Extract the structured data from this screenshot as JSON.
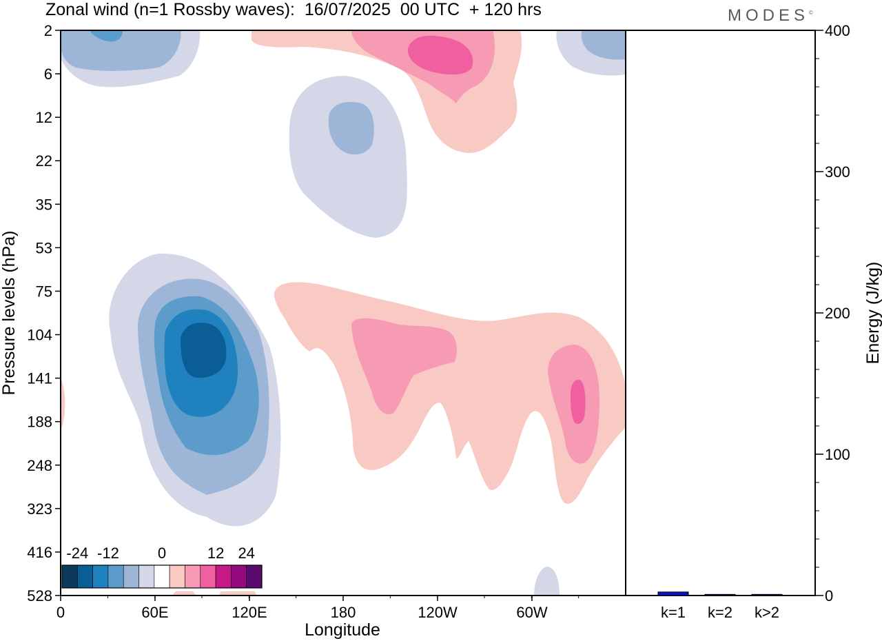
{
  "header": {
    "title": "Zonal wind (n=1 Rossby waves):  16/07/2025  00 UTC  + 120 hrs",
    "brand": "MODES",
    "brand_mark": "©"
  },
  "colors": {
    "neg": [
      "#0b3a5c",
      "#0b5d96",
      "#1f82bf",
      "#5b9ccb",
      "#9db6d8",
      "#d4d7e8"
    ],
    "zero": "#ffffff",
    "pos": [
      "#f9c9c4",
      "#f79ab3",
      "#f060a0",
      "#c8198a",
      "#920a7c",
      "#5a0a6c"
    ],
    "bar_fill": "#1010c8",
    "bar_edge": "#000000"
  },
  "chart_data": [
    {
      "type": "heatmap",
      "title": "Zonal wind (n=1 Rossby waves):  16/07/2025  00 UTC  + 120 hrs",
      "xlabel": "Longitude",
      "ylabel": "Pressure levels (hPa)",
      "x_ticks": [
        "0",
        "60E",
        "120E",
        "180",
        "120W",
        "60W"
      ],
      "y_ticks": [
        "2",
        "6",
        "12",
        "22",
        "35",
        "53",
        "75",
        "104",
        "141",
        "188",
        "248",
        "323",
        "416",
        "528"
      ],
      "colorbar": {
        "labels": [
          "-24",
          "-12",
          "0",
          "12",
          "24"
        ],
        "levels": [
          -30,
          -25,
          -20,
          -15,
          -10,
          -5,
          -1,
          1,
          5,
          10,
          15,
          20,
          25,
          30
        ]
      },
      "features": [
        {
          "sign": "negative",
          "lon": 90,
          "level_hPa": 120,
          "min": -24
        },
        {
          "sign": "negative",
          "lon": 20,
          "level_hPa": 2,
          "min": -10
        },
        {
          "sign": "negative",
          "lon": 190,
          "level_hPa": 15,
          "min": -10
        },
        {
          "sign": "negative",
          "lon": 340,
          "level_hPa": 2,
          "min": -10
        },
        {
          "sign": "positive",
          "lon": 230,
          "level_hPa": 3,
          "max": 15
        },
        {
          "sign": "positive",
          "lon": 210,
          "level_hPa": 110,
          "max": 10
        },
        {
          "sign": "positive",
          "lon": 315,
          "level_hPa": 150,
          "max": 15
        }
      ]
    },
    {
      "type": "bar",
      "categories": [
        "k=1",
        "k=2",
        "k>2"
      ],
      "values": [
        2.5,
        0.8,
        0.8
      ],
      "ylabel": "Energy (J/kg)",
      "ylim": [
        0,
        400
      ],
      "y_ticks": [
        "0",
        "100",
        "200",
        "300",
        "400"
      ]
    }
  ]
}
